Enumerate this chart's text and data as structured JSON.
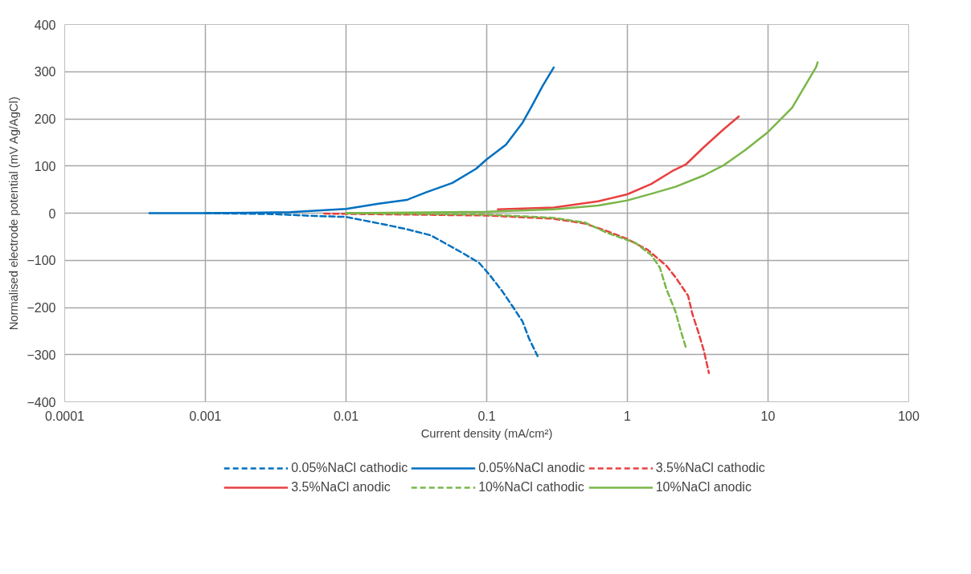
{
  "chart_data": {
    "type": "line",
    "xlabel": "Current density (mA/cm²)",
    "ylabel": "Normalised electrode potential (mV Ag/AgCl)",
    "log": "x",
    "grid": true,
    "legend": "bottom",
    "marker": "none",
    "xlim": [
      0.0001,
      100
    ],
    "xticks": [
      {
        "value": 0.0001,
        "label": "0.0001"
      },
      {
        "value": 0.001,
        "label": "0.001"
      },
      {
        "value": 0.01,
        "label": "0.01"
      },
      {
        "value": 0.1,
        "label": "0.1"
      },
      {
        "value": 1,
        "label": "1"
      },
      {
        "value": 10,
        "label": "10"
      },
      {
        "value": 100,
        "label": "100"
      }
    ],
    "ylim": [
      -400,
      400
    ],
    "yticks": [
      -400,
      -300,
      -200,
      -100,
      0,
      100,
      200,
      300,
      400
    ],
    "series": [
      {
        "name": "0.05%NaCl cathodic",
        "color": "#0070c0",
        "line_style": "dashed",
        "x": [
          0.001,
          0.003,
          0.006,
          0.01,
          0.018,
          0.027,
          0.04,
          0.05,
          0.067,
          0.088,
          0.105,
          0.13,
          0.157,
          0.18,
          0.2,
          0.23
        ],
        "values": [
          0,
          -2,
          -6,
          -8,
          -23,
          -34,
          -47,
          -63,
          -84,
          -105,
          -131,
          -167,
          -203,
          -230,
          -266,
          -303
        ]
      },
      {
        "name": "0.05%NaCl anodic",
        "color": "#0070c0",
        "line_style": "solid",
        "x": [
          0.0004,
          0.001,
          0.002,
          0.004,
          0.01,
          0.017,
          0.027,
          0.037,
          0.057,
          0.084,
          0.1,
          0.137,
          0.18,
          0.21,
          0.25,
          0.3
        ],
        "values": [
          0,
          0,
          1,
          2,
          9,
          20,
          28,
          44,
          64,
          94,
          114,
          145,
          192,
          228,
          270,
          309
        ]
      },
      {
        "name": "3.5%NaCl cathodic",
        "color": "#e84040",
        "line_style": "dashed",
        "x": [
          0.007,
          0.1,
          0.3,
          0.5,
          0.73,
          1,
          1.4,
          1.9,
          2.2,
          2.7,
          2.9,
          3.2,
          3.5,
          3.8
        ],
        "values": [
          -1,
          -5,
          -12,
          -22,
          -39,
          -55,
          -78,
          -112,
          -136,
          -175,
          -214,
          -253,
          -292,
          -339
        ]
      },
      {
        "name": "3.5%NaCl anodic",
        "color": "#e84040",
        "line_style": "solid",
        "x": [
          0.12,
          0.3,
          0.62,
          1,
          1.48,
          2.08,
          2.6,
          3.5,
          4.8,
          6.2
        ],
        "values": [
          8,
          12,
          25,
          40,
          62,
          89,
          103,
          140,
          177,
          205
        ]
      },
      {
        "name": "10%NaCl cathodic",
        "color": "#7ab648",
        "line_style": "dashed",
        "x": [
          0.01,
          0.1,
          0.3,
          0.5,
          0.72,
          1.14,
          1.48,
          1.7,
          1.9,
          2.2,
          2.4,
          2.6
        ],
        "values": [
          0,
          -3,
          -10,
          -20,
          -42,
          -63,
          -89,
          -115,
          -162,
          -209,
          -250,
          -284
        ]
      },
      {
        "name": "10%NaCl anodic",
        "color": "#7ab648",
        "line_style": "solid",
        "x": [
          0.01,
          0.1,
          0.3,
          0.62,
          1,
          1.48,
          2.2,
          3.5,
          4.8,
          6.9,
          10,
          14.8,
          22,
          22.5
        ],
        "values": [
          0,
          3,
          8,
          16,
          27,
          41,
          56,
          80,
          101,
          134,
          172,
          223,
          310,
          320
        ]
      }
    ]
  }
}
